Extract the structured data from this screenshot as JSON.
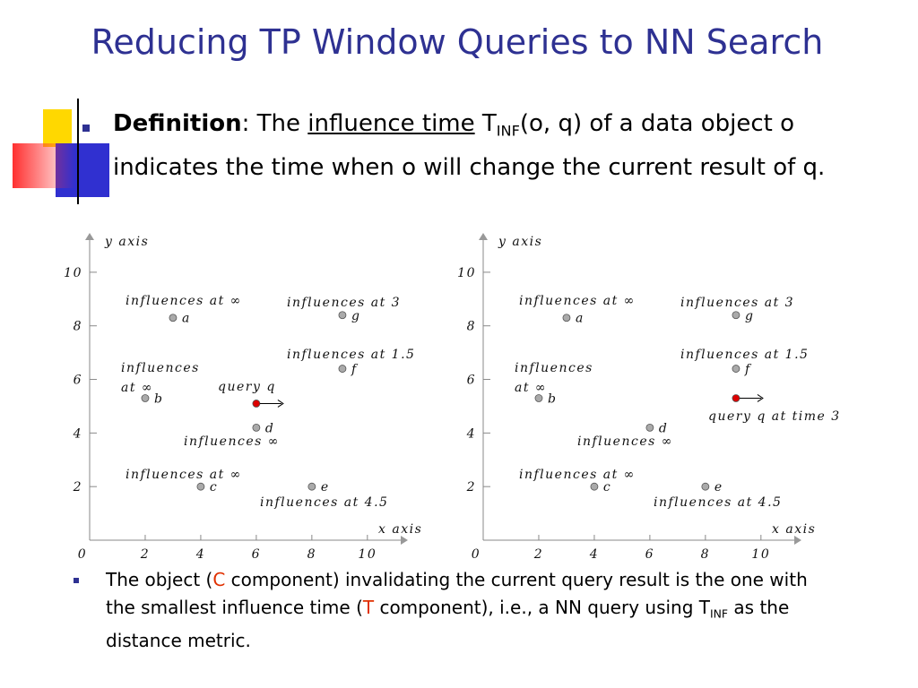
{
  "slide": {
    "title": "Reducing TP Window Queries to NN Search",
    "bullets": [
      {
        "parts": [
          "Definition",
          ": The ",
          "influence time",
          " T",
          "INF",
          "(o, q) of a data object o indicates the time when o will change the current result of q."
        ]
      },
      {
        "parts": [
          "The object (",
          "C",
          " component) invalidating the current query result is the one with the smallest influence time (",
          "T",
          " component), i.e., a NN query using T",
          "INF",
          " as the distance metric."
        ]
      }
    ]
  },
  "chart_data": [
    {
      "type": "scatter",
      "x_label": "x axis",
      "y_label": "y axis",
      "xlim": [
        0,
        11.2
      ],
      "ylim": [
        0,
        11.2
      ],
      "xticks": [
        0,
        2,
        4,
        6,
        8,
        10
      ],
      "yticks": [
        2,
        4,
        6,
        8,
        10
      ],
      "x": [
        3,
        9.1,
        9.1,
        2,
        6,
        6,
        4,
        8
      ],
      "values": [
        8.3,
        8.4,
        6.4,
        5.3,
        5.1,
        4.2,
        2,
        2
      ],
      "point_labels": [
        "a",
        "g",
        "f",
        "b",
        null,
        "d",
        "c",
        "e"
      ],
      "point_colors": [
        "#aaaaaa",
        "#aaaaaa",
        "#aaaaaa",
        "#aaaaaa",
        "#dd0000",
        "#aaaaaa",
        "#aaaaaa",
        "#aaaaaa"
      ],
      "annotations": [
        "influences at ∞",
        "influences at 3",
        "influences at 1.5",
        "influences",
        "at ∞",
        "query q",
        "influences ∞",
        "influences at ∞",
        "influences at 4.5"
      ]
    },
    {
      "type": "scatter",
      "x_label": "x axis",
      "y_label": "y axis",
      "xlim": [
        0,
        11.2
      ],
      "ylim": [
        0,
        11.2
      ],
      "xticks": [
        0,
        2,
        4,
        6,
        8,
        10
      ],
      "yticks": [
        2,
        4,
        6,
        8,
        10
      ],
      "x": [
        3,
        9.1,
        9.1,
        2,
        9.1,
        6,
        4,
        8
      ],
      "values": [
        8.3,
        8.4,
        6.4,
        5.3,
        5.3,
        4.2,
        2,
        2
      ],
      "point_labels": [
        "a",
        "g",
        "f",
        "b",
        null,
        "d",
        "c",
        "e"
      ],
      "point_colors": [
        "#aaaaaa",
        "#aaaaaa",
        "#aaaaaa",
        "#aaaaaa",
        "#dd0000",
        "#aaaaaa",
        "#aaaaaa",
        "#aaaaaa"
      ],
      "annotations": [
        "influences at ∞",
        "influences at 3",
        "influences at 1.5",
        "influences",
        "at ∞",
        "query q at time 3",
        "influences ∞",
        "influences at ∞",
        "influences at 4.5"
      ]
    }
  ]
}
